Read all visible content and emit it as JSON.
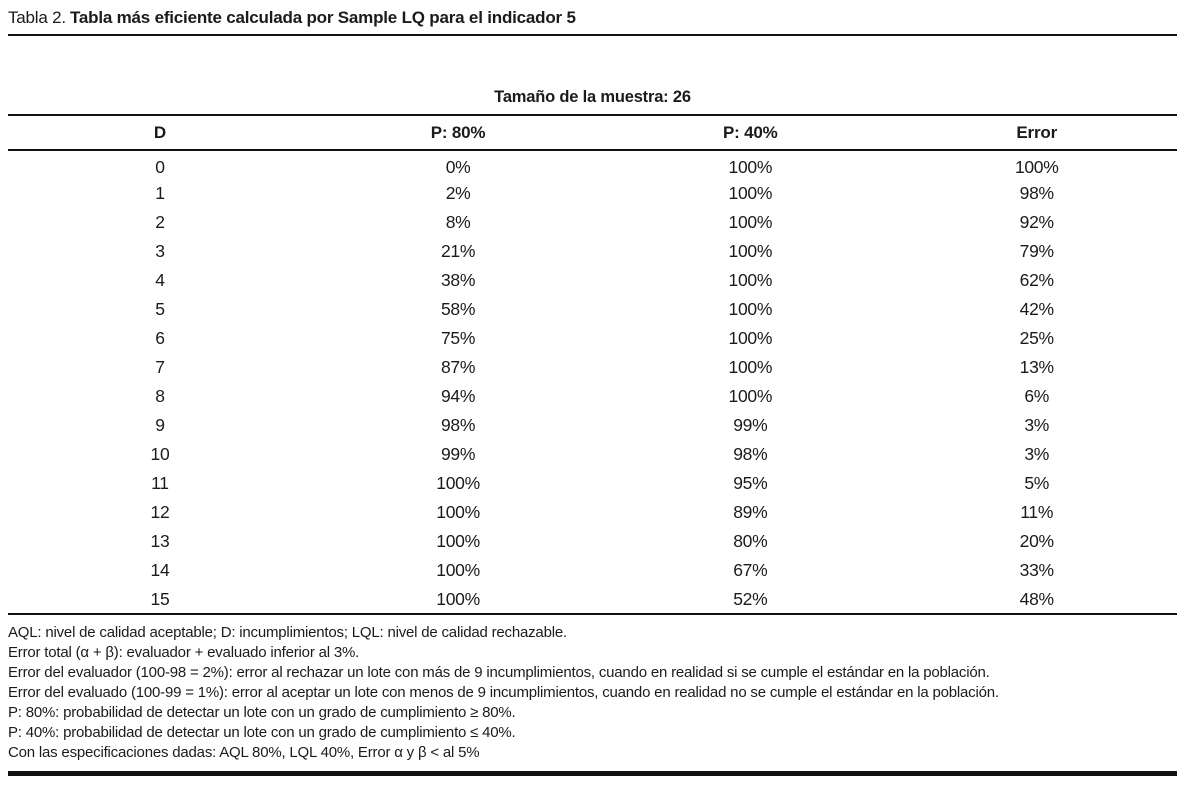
{
  "title": {
    "prefix": "Tabla 2.",
    "text": "Tabla más eficiente calculada por Sample LQ para el indicador 5"
  },
  "table": {
    "subtitle": "Tamaño de la muestra: 26",
    "headers": [
      "D",
      "P: 80%",
      "P: 40%",
      "Error"
    ],
    "rows": [
      [
        "0",
        "0%",
        "100%",
        "100%"
      ],
      [
        "1",
        "2%",
        "100%",
        "98%"
      ],
      [
        "2",
        "8%",
        "100%",
        "92%"
      ],
      [
        "3",
        "21%",
        "100%",
        "79%"
      ],
      [
        "4",
        "38%",
        "100%",
        "62%"
      ],
      [
        "5",
        "58%",
        "100%",
        "42%"
      ],
      [
        "6",
        "75%",
        "100%",
        "25%"
      ],
      [
        "7",
        "87%",
        "100%",
        "13%"
      ],
      [
        "8",
        "94%",
        "100%",
        "6%"
      ],
      [
        "9",
        "98%",
        "99%",
        "3%"
      ],
      [
        "10",
        "99%",
        "98%",
        "3%"
      ],
      [
        "11",
        "100%",
        "95%",
        "5%"
      ],
      [
        "12",
        "100%",
        "89%",
        "11%"
      ],
      [
        "13",
        "100%",
        "80%",
        "20%"
      ],
      [
        "14",
        "100%",
        "67%",
        "33%"
      ],
      [
        "15",
        "100%",
        "52%",
        "48%"
      ]
    ]
  },
  "footnotes": [
    "AQL: nivel de calidad aceptable; D: incumplimientos; LQL: nivel de calidad rechazable.",
    "Error total (α + β): evaluador + evaluado inferior al 3%.",
    "Error del evaluador (100-98 = 2%): error al rechazar un lote con más de 9 incumplimientos, cuando en realidad si se cumple el estándar en la población.",
    "Error del evaluado (100-99 = 1%): error al aceptar un lote con menos de 9 incumplimientos, cuando en realidad no se cumple el estándar en la población.",
    "P: 80%: probabilidad de detectar un lote con un grado de cumplimiento ≥ 80%.",
    "P: 40%: probabilidad de detectar un lote con un grado de cumplimiento ≤ 40%.",
    "Con las especificaciones dadas: AQL 80%, LQL 40%, Error α y β < al 5%"
  ],
  "colors": {
    "text": "#1b1b1b",
    "rule": "#111111",
    "background": "#ffffff"
  }
}
